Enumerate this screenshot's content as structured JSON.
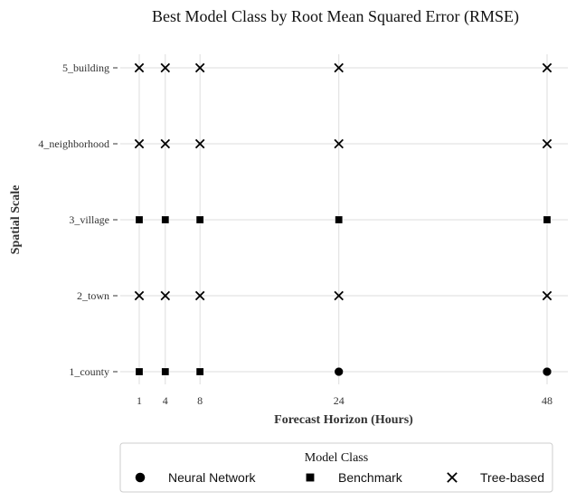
{
  "chart_data": {
    "type": "scatter",
    "title": "Best Model Class by Root Mean Squared Error (RMSE)",
    "xlabel": "Forecast Horizon (Hours)",
    "ylabel": "Spatial Scale",
    "x_ticks": [
      1,
      4,
      8,
      24,
      48
    ],
    "y_categories": [
      "1_county",
      "2_town",
      "3_village",
      "4_neighborhood",
      "5_building"
    ],
    "grid": true,
    "legend": {
      "title": "Model Class",
      "position": "bottom",
      "entries": [
        {
          "name": "Neural Network",
          "marker": "circle"
        },
        {
          "name": "Benchmark",
          "marker": "square"
        },
        {
          "name": "Tree-based",
          "marker": "x"
        }
      ]
    },
    "points": [
      {
        "x": 1,
        "y": "1_county",
        "class": "Benchmark"
      },
      {
        "x": 4,
        "y": "1_county",
        "class": "Benchmark"
      },
      {
        "x": 8,
        "y": "1_county",
        "class": "Benchmark"
      },
      {
        "x": 24,
        "y": "1_county",
        "class": "Neural Network"
      },
      {
        "x": 48,
        "y": "1_county",
        "class": "Neural Network"
      },
      {
        "x": 1,
        "y": "2_town",
        "class": "Tree-based"
      },
      {
        "x": 4,
        "y": "2_town",
        "class": "Tree-based"
      },
      {
        "x": 8,
        "y": "2_town",
        "class": "Tree-based"
      },
      {
        "x": 24,
        "y": "2_town",
        "class": "Tree-based"
      },
      {
        "x": 48,
        "y": "2_town",
        "class": "Tree-based"
      },
      {
        "x": 1,
        "y": "3_village",
        "class": "Benchmark"
      },
      {
        "x": 4,
        "y": "3_village",
        "class": "Benchmark"
      },
      {
        "x": 8,
        "y": "3_village",
        "class": "Benchmark"
      },
      {
        "x": 24,
        "y": "3_village",
        "class": "Benchmark"
      },
      {
        "x": 48,
        "y": "3_village",
        "class": "Benchmark"
      },
      {
        "x": 1,
        "y": "4_neighborhood",
        "class": "Tree-based"
      },
      {
        "x": 4,
        "y": "4_neighborhood",
        "class": "Tree-based"
      },
      {
        "x": 8,
        "y": "4_neighborhood",
        "class": "Tree-based"
      },
      {
        "x": 24,
        "y": "4_neighborhood",
        "class": "Tree-based"
      },
      {
        "x": 48,
        "y": "4_neighborhood",
        "class": "Tree-based"
      },
      {
        "x": 1,
        "y": "5_building",
        "class": "Tree-based"
      },
      {
        "x": 4,
        "y": "5_building",
        "class": "Tree-based"
      },
      {
        "x": 8,
        "y": "5_building",
        "class": "Tree-based"
      },
      {
        "x": 24,
        "y": "5_building",
        "class": "Tree-based"
      },
      {
        "x": 48,
        "y": "5_building",
        "class": "Tree-based"
      }
    ],
    "colors": {
      "marker": "#000000",
      "grid": "#dddddd",
      "text": "#333333"
    }
  }
}
